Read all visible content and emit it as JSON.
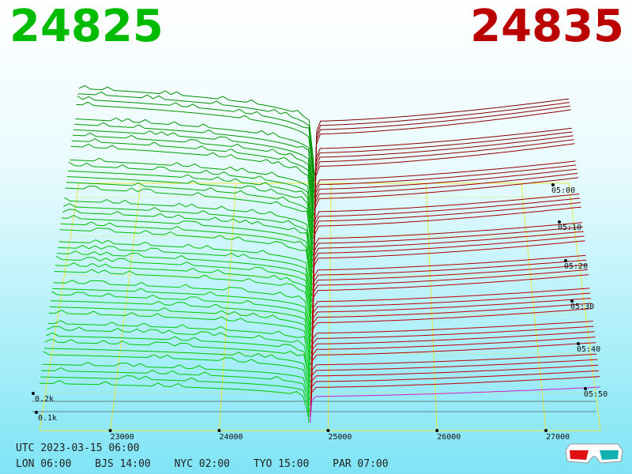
{
  "header": {
    "bid_price": "24825",
    "ask_price": "24835",
    "bid_color": "#00bb00",
    "ask_color": "#bb0000"
  },
  "chart_data": {
    "type": "area",
    "title": "",
    "xlabel": "",
    "ylabel": "",
    "x_ticks": [
      23000,
      24000,
      25000,
      26000,
      27000
    ],
    "y_ticks": [
      "0.1k",
      "0.2k"
    ],
    "time_ticks": [
      "05:00",
      "05:10",
      "05:20",
      "05:30",
      "05:40",
      "05:50"
    ],
    "xlim": [
      22350,
      27500
    ],
    "bid_color": "#00aa00",
    "ask_color": "#aa0000",
    "mid_price": 24830,
    "grid": true
  },
  "footer": {
    "utc": "UTC 2023-03-15 06:00",
    "zones": [
      "LON 06:00",
      "BJS 14:00",
      "NYC 02:00",
      "TYO 15:00",
      "PAR 07:00"
    ]
  },
  "icons": {
    "glasses": "3d-glasses-icon"
  }
}
